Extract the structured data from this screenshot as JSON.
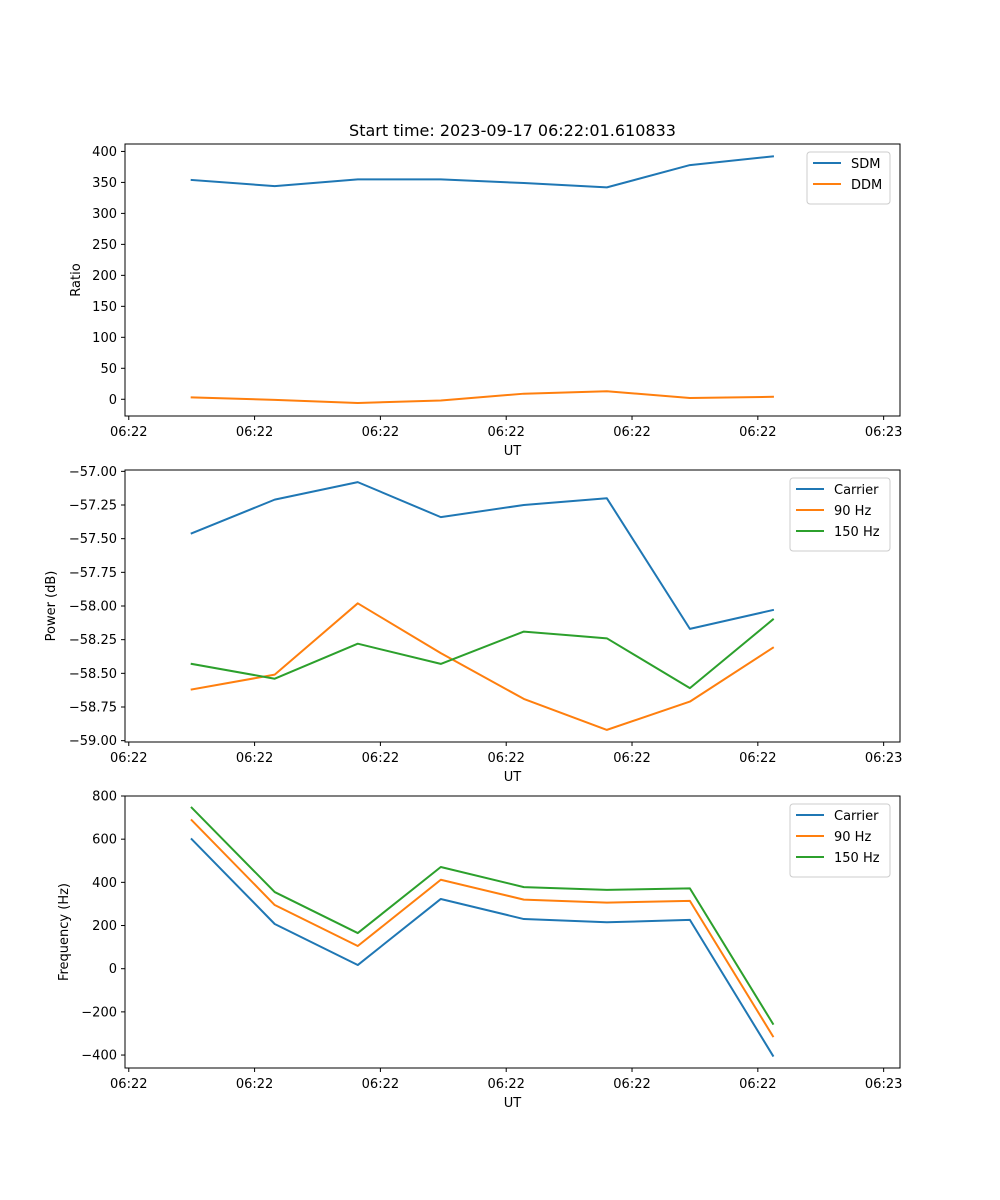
{
  "title": "Start time: 2023-09-17 06:22:01.610833",
  "colors": {
    "blue": "#1f77b4",
    "orange": "#ff7f0e",
    "green": "#2ca02c"
  },
  "chart_data": [
    {
      "type": "line",
      "title": "Start time: 2023-09-17 06:22:01.610833",
      "xlabel": "UT",
      "ylabel": "Ratio",
      "x": [
        0.5,
        1.16,
        1.82,
        2.48,
        3.14,
        3.8,
        4.46,
        5.12
      ],
      "xlim": [
        -0.03,
        6.13
      ],
      "xticks": [
        0,
        1,
        2,
        3,
        4,
        5,
        6
      ],
      "xtick_labels": [
        "06:22",
        "06:22",
        "06:22",
        "06:22",
        "06:22",
        "06:22",
        "06:23"
      ],
      "ylim": [
        -27,
        412
      ],
      "yticks": [
        0,
        50,
        100,
        150,
        200,
        250,
        300,
        350,
        400
      ],
      "ytick_labels": [
        "0",
        "50",
        "100",
        "150",
        "200",
        "250",
        "300",
        "350",
        "400"
      ],
      "legend_position": "top-right",
      "series": [
        {
          "name": "SDM",
          "color": "#1f77b4",
          "values": [
            354,
            344,
            355,
            355,
            349,
            342,
            378,
            392
          ]
        },
        {
          "name": "DDM",
          "color": "#ff7f0e",
          "values": [
            3,
            -1,
            -6,
            -2,
            9,
            13,
            2,
            4
          ]
        }
      ]
    },
    {
      "type": "line",
      "xlabel": "UT",
      "ylabel": "Power (dB)",
      "x": [
        0.5,
        1.16,
        1.82,
        2.48,
        3.14,
        3.8,
        4.46,
        5.12
      ],
      "xlim": [
        -0.03,
        6.13
      ],
      "xticks": [
        0,
        1,
        2,
        3,
        4,
        5,
        6
      ],
      "xtick_labels": [
        "06:22",
        "06:22",
        "06:22",
        "06:22",
        "06:22",
        "06:22",
        "06:23"
      ],
      "ylim": [
        -59.01,
        -56.99
      ],
      "yticks": [
        -59.0,
        -58.75,
        -58.5,
        -58.25,
        -58.0,
        -57.75,
        -57.5,
        -57.25,
        -57.0
      ],
      "ytick_labels": [
        "−59.00",
        "−58.75",
        "−58.50",
        "−58.25",
        "−58.00",
        "−57.75",
        "−57.50",
        "−57.25",
        "−57.00"
      ],
      "legend_position": "top-right",
      "series": [
        {
          "name": "Carrier",
          "color": "#1f77b4",
          "values": [
            -57.46,
            -57.21,
            -57.08,
            -57.34,
            -57.25,
            -57.2,
            -58.17,
            -58.03
          ]
        },
        {
          "name": "90 Hz",
          "color": "#ff7f0e",
          "values": [
            -58.62,
            -58.51,
            -57.98,
            -58.35,
            -58.69,
            -58.92,
            -58.71,
            -58.31
          ]
        },
        {
          "name": "150 Hz",
          "color": "#2ca02c",
          "values": [
            -58.43,
            -58.54,
            -58.28,
            -58.43,
            -58.19,
            -58.24,
            -58.61,
            -58.1
          ]
        }
      ]
    },
    {
      "type": "line",
      "xlabel": "UT",
      "ylabel": "Frequency (Hz)",
      "x": [
        0.5,
        1.16,
        1.82,
        2.48,
        3.14,
        3.8,
        4.46,
        5.12
      ],
      "xlim": [
        -0.03,
        6.13
      ],
      "xticks": [
        0,
        1,
        2,
        3,
        4,
        5,
        6
      ],
      "xtick_labels": [
        "06:22",
        "06:22",
        "06:22",
        "06:22",
        "06:22",
        "06:22",
        "06:23"
      ],
      "ylim": [
        -460,
        800
      ],
      "yticks": [
        -400,
        -200,
        0,
        200,
        400,
        600,
        800
      ],
      "ytick_labels": [
        "−400",
        "−200",
        "0",
        "200",
        "400",
        "600",
        "800"
      ],
      "legend_position": "top-right",
      "series": [
        {
          "name": "Carrier",
          "color": "#1f77b4",
          "values": [
            600,
            207,
            17,
            323,
            230,
            215,
            226,
            -403
          ]
        },
        {
          "name": "90 Hz",
          "color": "#ff7f0e",
          "values": [
            688,
            295,
            105,
            412,
            320,
            306,
            314,
            -313
          ]
        },
        {
          "name": "150 Hz",
          "color": "#2ca02c",
          "values": [
            746,
            355,
            165,
            471,
            378,
            365,
            372,
            -255
          ]
        }
      ]
    }
  ]
}
